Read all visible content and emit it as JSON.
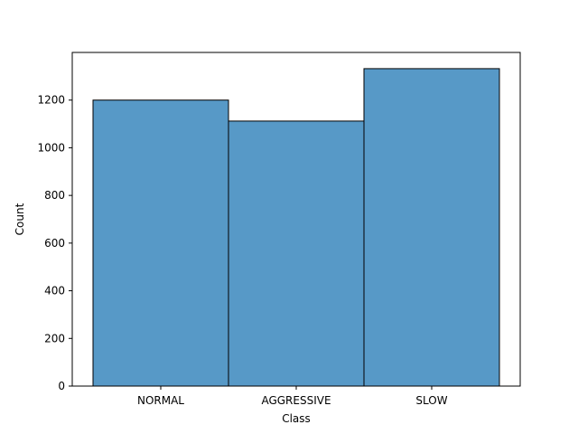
{
  "chart_data": {
    "type": "bar",
    "title": "",
    "xlabel": "Class",
    "ylabel": "Count",
    "categories": [
      "NORMAL",
      "AGGRESSIVE",
      "SLOW"
    ],
    "values": [
      1200,
      1112,
      1332
    ],
    "ylim": [
      0,
      1400
    ],
    "yticks": [
      0,
      200,
      400,
      600,
      800,
      1000,
      1200
    ],
    "grid": false,
    "legend": "none",
    "bar_color": "#5799c7",
    "edge_color": "#000000"
  }
}
